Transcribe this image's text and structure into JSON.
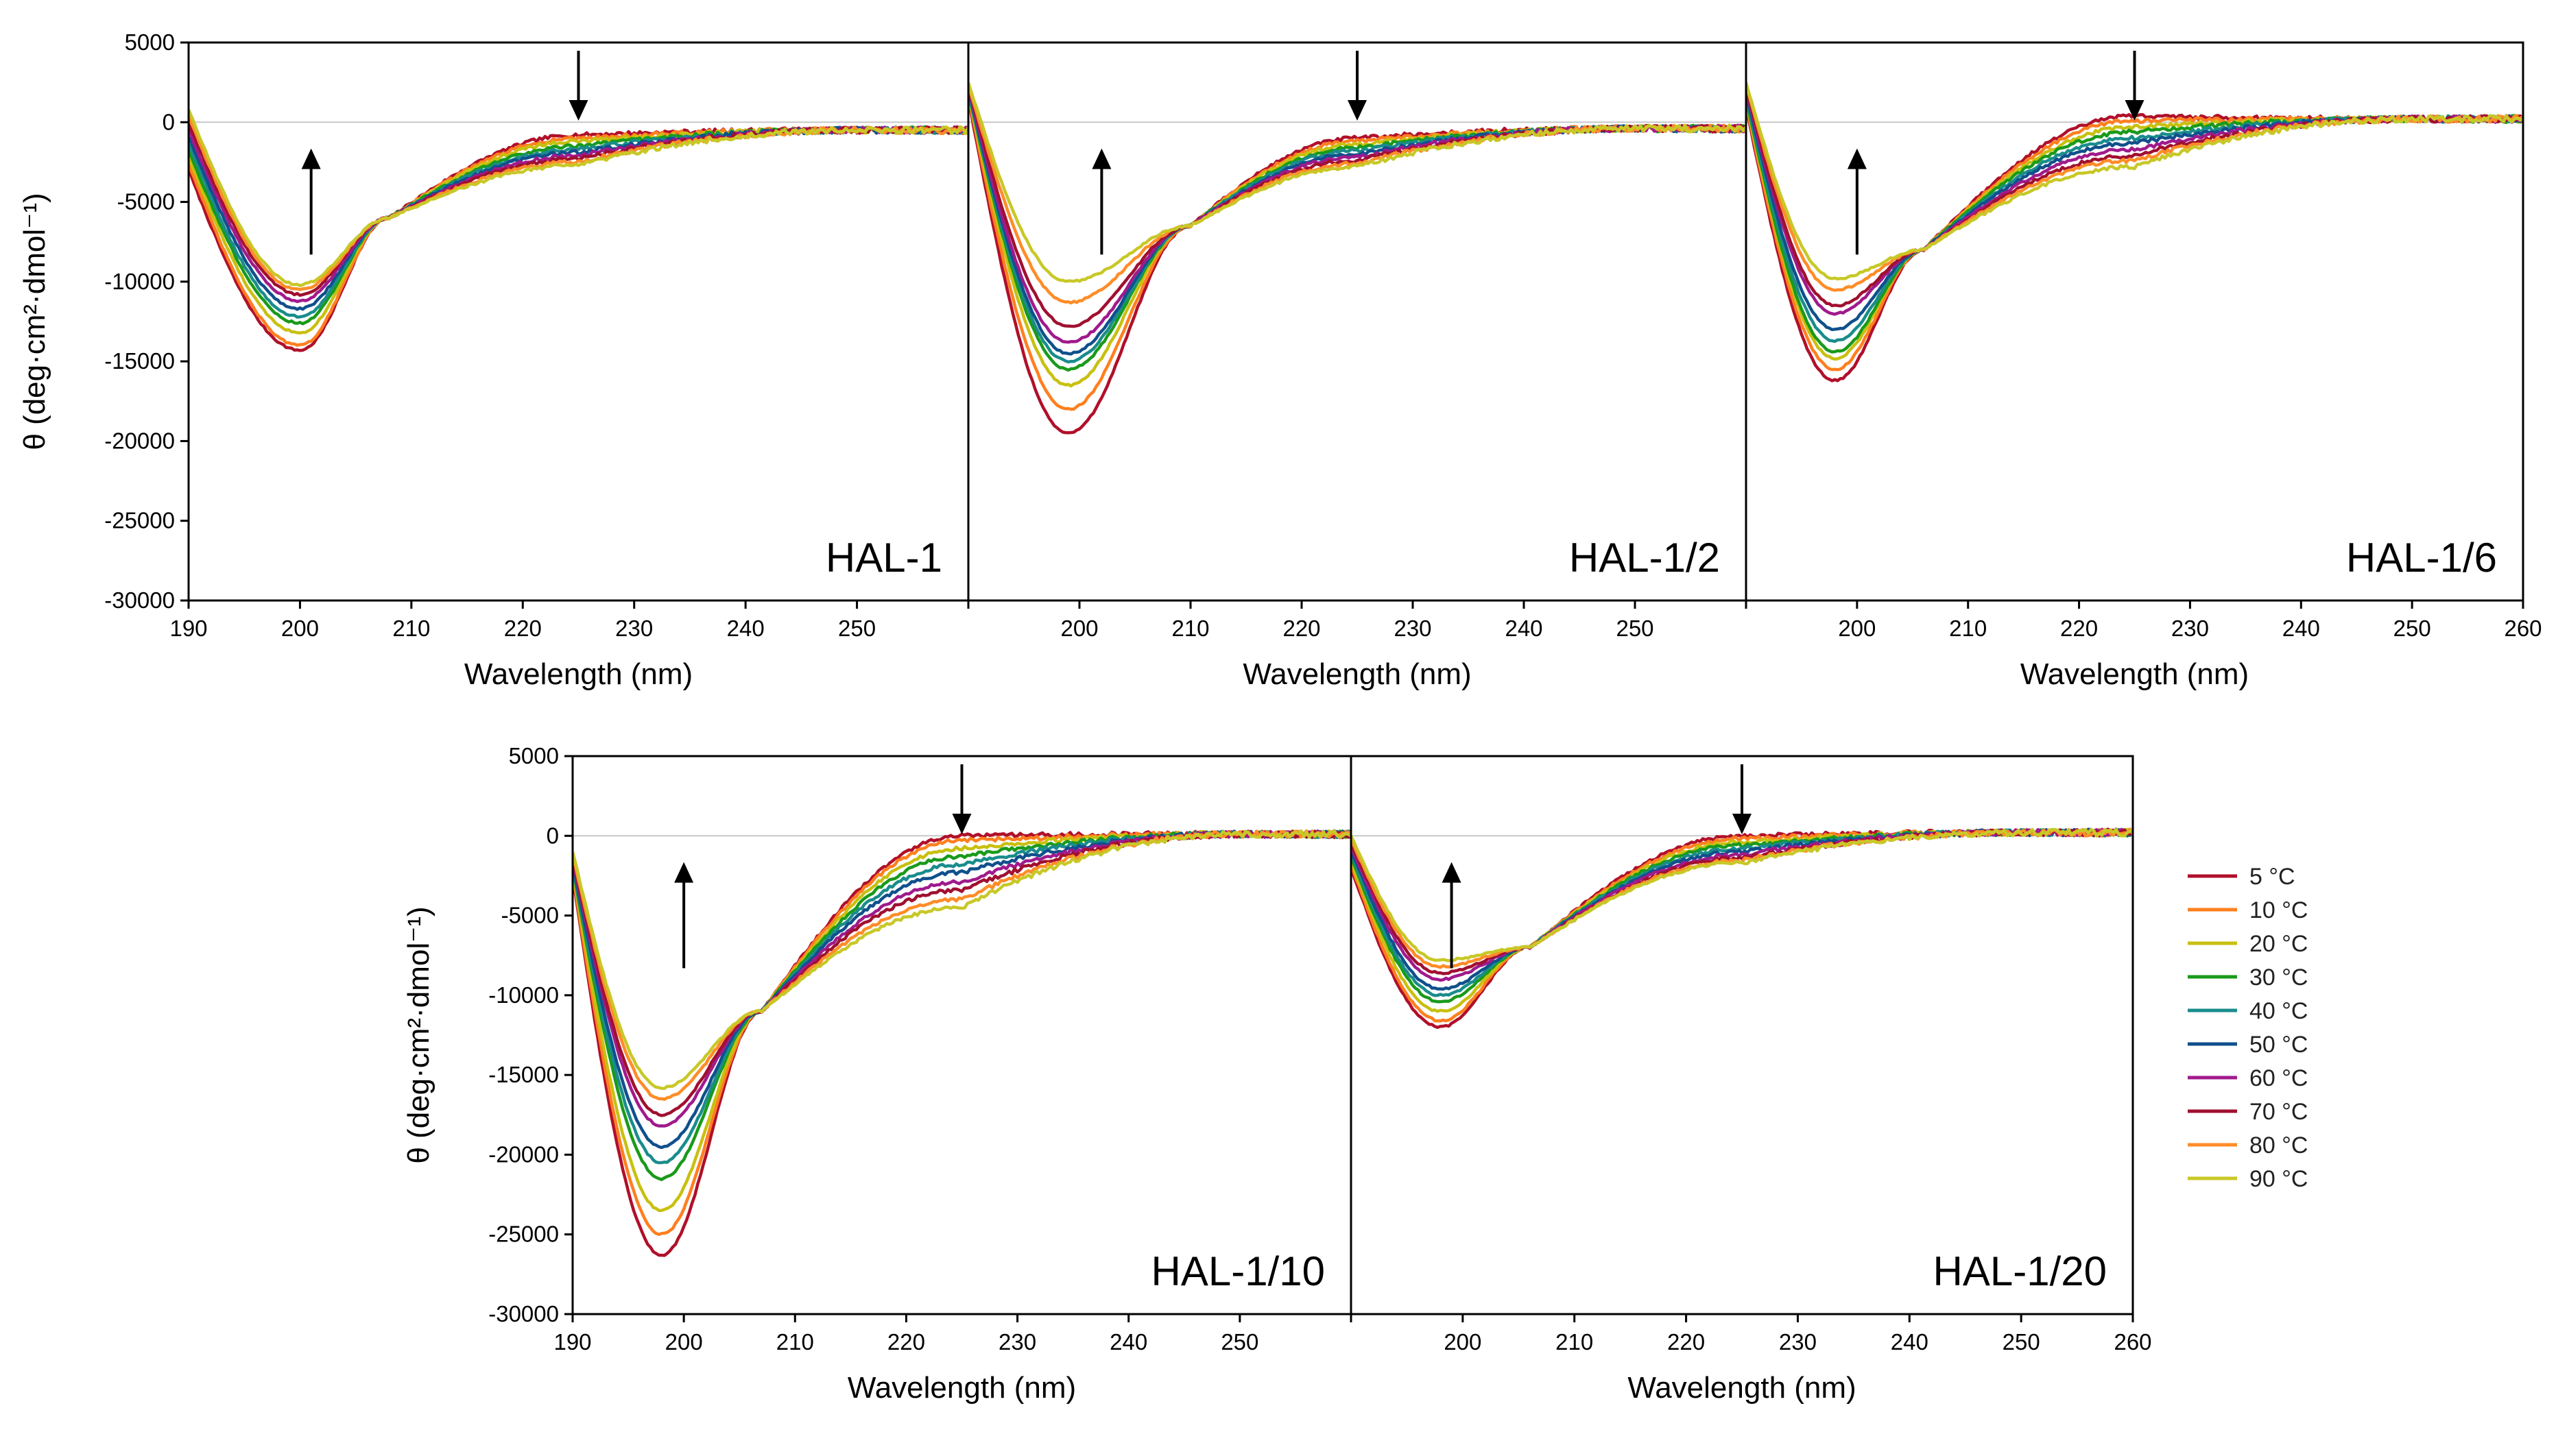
{
  "figure": {
    "series_names": [
      "5 °C",
      "10 °C",
      "20 °C",
      "30 °C",
      "40 °C",
      "50 °C",
      "60 °C",
      "70 °C",
      "80 °C",
      "90 °C"
    ],
    "series_colors": [
      "#b0102a",
      "#ff7f1f",
      "#c8c010",
      "#1a9a1a",
      "#1a8c8c",
      "#10508c",
      "#a01a8c",
      "#a01030",
      "#ff8c28",
      "#c8c828"
    ],
    "x_ticks_wavelength": [
      190,
      200,
      210,
      220,
      230,
      240,
      250,
      260
    ],
    "y_ticks_theta": [
      5000,
      0,
      -5000,
      -10000,
      -15000,
      -20000,
      -25000,
      -30000
    ],
    "y_tick_labels": [
      "5000",
      "0",
      "-5000",
      "-10000",
      "-15000",
      "-20000",
      "-25000",
      "-30000"
    ]
  },
  "chart_data": [
    {
      "type": "line",
      "panel": "HAL-1",
      "xlabel": "Wavelength (nm)",
      "ylabel": "θ (deg·cm²·dmol⁻¹)",
      "xlim": [
        190,
        260
      ],
      "ylim": [
        -30000,
        5000
      ],
      "x_tick_labels": [
        "190",
        "200",
        "210",
        "220",
        "230",
        "240",
        "250"
      ],
      "shape": {
        "x_min": 200,
        "min_first": -14300,
        "min_last": -10200,
        "start_first": -3000,
        "start_last": 800,
        "cross_x": 208,
        "cross_y": -6000,
        "s225_first": -800,
        "s225_last": -2700,
        "tail": -500
      },
      "series": [
        {
          "name": "5 °C",
          "min": -14300,
          "at225": -800
        },
        {
          "name": "10 °C",
          "min": -14000,
          "at225": -1000
        },
        {
          "name": "20 °C",
          "min": -13200,
          "at225": -1200
        },
        {
          "name": "30 °C",
          "min": -12600,
          "at225": -1500
        },
        {
          "name": "40 °C",
          "min": -12200,
          "at225": -1700
        },
        {
          "name": "50 °C",
          "min": -11700,
          "at225": -1900
        },
        {
          "name": "60 °C",
          "min": -11200,
          "at225": -2100
        },
        {
          "name": "70 °C",
          "min": -10800,
          "at225": -2300
        },
        {
          "name": "80 °C",
          "min": -10500,
          "at225": -2500
        },
        {
          "name": "90 °C",
          "min": -10200,
          "at225": -2700
        }
      ],
      "arrows": [
        {
          "x": 201,
          "direction": "up"
        },
        {
          "x": 225,
          "direction": "down"
        }
      ]
    },
    {
      "type": "line",
      "panel": "HAL-1/2",
      "xlabel": "Wavelength (nm)",
      "xlim": [
        190,
        260
      ],
      "ylim": [
        -30000,
        5000
      ],
      "x_tick_labels": [
        "200",
        "210",
        "220",
        "230",
        "240",
        "250"
      ],
      "shape": {
        "x_min": 199,
        "min_first": -19500,
        "min_last": -10000,
        "start_first": 1500,
        "start_last": 2500,
        "cross_x": 210,
        "cross_y": -6500,
        "s225_first": -1000,
        "s225_last": -2800,
        "tail": -400
      },
      "series": [
        {
          "name": "5 °C",
          "min": -19500,
          "at225": -1000
        },
        {
          "name": "10 °C",
          "min": -18000,
          "at225": -1200
        },
        {
          "name": "20 °C",
          "min": -16500,
          "at225": -1400
        },
        {
          "name": "30 °C",
          "min": -15500,
          "at225": -1600
        },
        {
          "name": "40 °C",
          "min": -15000,
          "at225": -1800
        },
        {
          "name": "50 °C",
          "min": -14500,
          "at225": -2000
        },
        {
          "name": "60 °C",
          "min": -13800,
          "at225": -2200
        },
        {
          "name": "70 °C",
          "min": -12800,
          "at225": -2400
        },
        {
          "name": "80 °C",
          "min": -11300,
          "at225": -2600
        },
        {
          "name": "90 °C",
          "min": -10000,
          "at225": -2800
        }
      ],
      "arrows": [
        {
          "x": 202,
          "direction": "up"
        },
        {
          "x": 225,
          "direction": "down"
        }
      ]
    },
    {
      "type": "line",
      "panel": "HAL-1/6",
      "xlabel": "Wavelength (nm)",
      "xlim": [
        190,
        260
      ],
      "ylim": [
        -30000,
        5000
      ],
      "x_tick_labels": [
        "200",
        "210",
        "220",
        "230",
        "240",
        "250",
        "260"
      ],
      "shape": {
        "x_min": 198,
        "min_first": -16200,
        "min_last": -9800,
        "start_first": 1000,
        "start_last": 2500,
        "cross_x": 206,
        "cross_y": -8000,
        "s225_first": 400,
        "s225_last": -2800,
        "tail": 200
      },
      "series": [
        {
          "name": "5 °C",
          "min": -16200,
          "at225": 400
        },
        {
          "name": "10 °C",
          "min": -15500,
          "at225": 100
        },
        {
          "name": "20 °C",
          "min": -14800,
          "at225": -300
        },
        {
          "name": "30 °C",
          "min": -14400,
          "at225": -600
        },
        {
          "name": "40 °C",
          "min": -13700,
          "at225": -1000
        },
        {
          "name": "50 °C",
          "min": -13000,
          "at225": -1300
        },
        {
          "name": "60 °C",
          "min": -12000,
          "at225": -1700
        },
        {
          "name": "70 °C",
          "min": -11500,
          "at225": -2100
        },
        {
          "name": "80 °C",
          "min": -10500,
          "at225": -2400
        },
        {
          "name": "90 °C",
          "min": -9800,
          "at225": -2800
        }
      ],
      "arrows": [
        {
          "x": 200,
          "direction": "up"
        },
        {
          "x": 225,
          "direction": "down"
        }
      ]
    },
    {
      "type": "line",
      "panel": "HAL-1/10",
      "xlabel": "Wavelength (nm)",
      "ylabel": "θ (deg·cm²·dmol⁻¹)",
      "xlim": [
        190,
        260
      ],
      "ylim": [
        -30000,
        5000
      ],
      "x_tick_labels": [
        "190",
        "200",
        "210",
        "220",
        "230",
        "240",
        "250"
      ],
      "shape": {
        "x_min": 198,
        "min_first": -26300,
        "min_last": -15800,
        "start_first": -2500,
        "start_last": -1000,
        "cross_x": 207,
        "cross_y": -11000,
        "s225_first": 0,
        "s225_last": -4500,
        "tail": 100
      },
      "series": [
        {
          "name": "5 °C",
          "min": -26300,
          "at225": 0
        },
        {
          "name": "10 °C",
          "min": -25000,
          "at225": -300
        },
        {
          "name": "20 °C",
          "min": -23500,
          "at225": -800
        },
        {
          "name": "30 °C",
          "min": -21500,
          "at225": -1300
        },
        {
          "name": "40 °C",
          "min": -20500,
          "at225": -1800
        },
        {
          "name": "50 °C",
          "min": -19500,
          "at225": -2300
        },
        {
          "name": "60 °C",
          "min": -18200,
          "at225": -2900
        },
        {
          "name": "70 °C",
          "min": -17500,
          "at225": -3400
        },
        {
          "name": "80 °C",
          "min": -16500,
          "at225": -4000
        },
        {
          "name": "90 °C",
          "min": -15800,
          "at225": -4500
        }
      ],
      "arrows": [
        {
          "x": 200,
          "direction": "up"
        },
        {
          "x": 225,
          "direction": "down"
        }
      ]
    },
    {
      "type": "line",
      "panel": "HAL-1/20",
      "xlabel": "Wavelength (nm)",
      "xlim": [
        190,
        260
      ],
      "ylim": [
        -30000,
        5000
      ],
      "x_tick_labels": [
        "200",
        "210",
        "220",
        "230",
        "240",
        "250",
        "260"
      ],
      "shape": {
        "x_min": 198,
        "min_first": -12000,
        "min_last": -7800,
        "start_first": -2000,
        "start_last": 0,
        "cross_x": 206,
        "cross_y": -7000,
        "s225_first": 0,
        "s225_last": -1700,
        "tail": 200
      },
      "series": [
        {
          "name": "5 °C",
          "min": -12000,
          "at225": 0
        },
        {
          "name": "10 °C",
          "min": -11600,
          "at225": -200
        },
        {
          "name": "20 °C",
          "min": -11000,
          "at225": -400
        },
        {
          "name": "30 °C",
          "min": -10400,
          "at225": -600
        },
        {
          "name": "40 °C",
          "min": -10000,
          "at225": -800
        },
        {
          "name": "50 °C",
          "min": -9600,
          "at225": -1000
        },
        {
          "name": "60 °C",
          "min": -9000,
          "at225": -1200
        },
        {
          "name": "70 °C",
          "min": -8600,
          "at225": -1400
        },
        {
          "name": "80 °C",
          "min": -8200,
          "at225": -1550
        },
        {
          "name": "90 °C",
          "min": -7800,
          "at225": -1700
        }
      ],
      "arrows": [
        {
          "x": 199,
          "direction": "up"
        },
        {
          "x": 225,
          "direction": "down"
        }
      ]
    }
  ]
}
